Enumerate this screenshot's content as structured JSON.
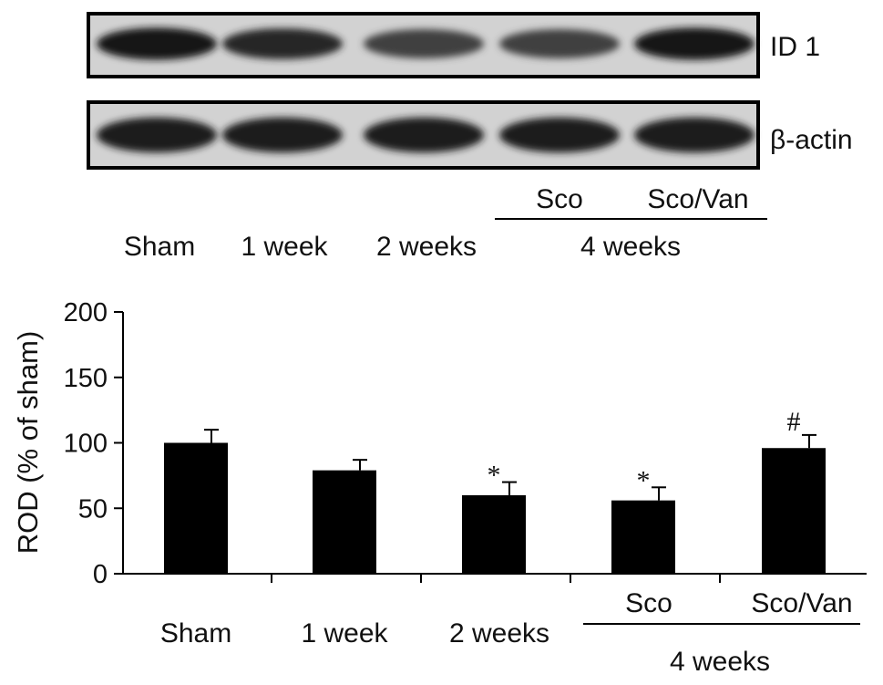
{
  "blot": {
    "rows": [
      {
        "label": "ID 1",
        "band_intensities": [
          0.95,
          0.85,
          0.72,
          0.72,
          0.95
        ]
      },
      {
        "label": "β-actin",
        "band_intensities": [
          0.9,
          0.9,
          0.9,
          0.9,
          0.9
        ]
      }
    ],
    "lane_labels": [
      "Sham",
      "1 week",
      "2 weeks",
      "Sco",
      "Sco/Van"
    ],
    "group_label": "4 weeks"
  },
  "chart_data": {
    "type": "bar",
    "categories": [
      "Sham",
      "1 week",
      "2 weeks",
      "Sco",
      "Sco/Van"
    ],
    "group_label": "4 weeks",
    "values": [
      100,
      79,
      60,
      56,
      96
    ],
    "errors": [
      10,
      8,
      10,
      10,
      10
    ],
    "significance": [
      "",
      "",
      "*",
      "*",
      "#"
    ],
    "ylabel": "ROD (% of sham)",
    "ylim": [
      0,
      200
    ],
    "yticks": [
      0,
      50,
      100,
      150,
      200
    ],
    "bar_color": "#000000"
  }
}
